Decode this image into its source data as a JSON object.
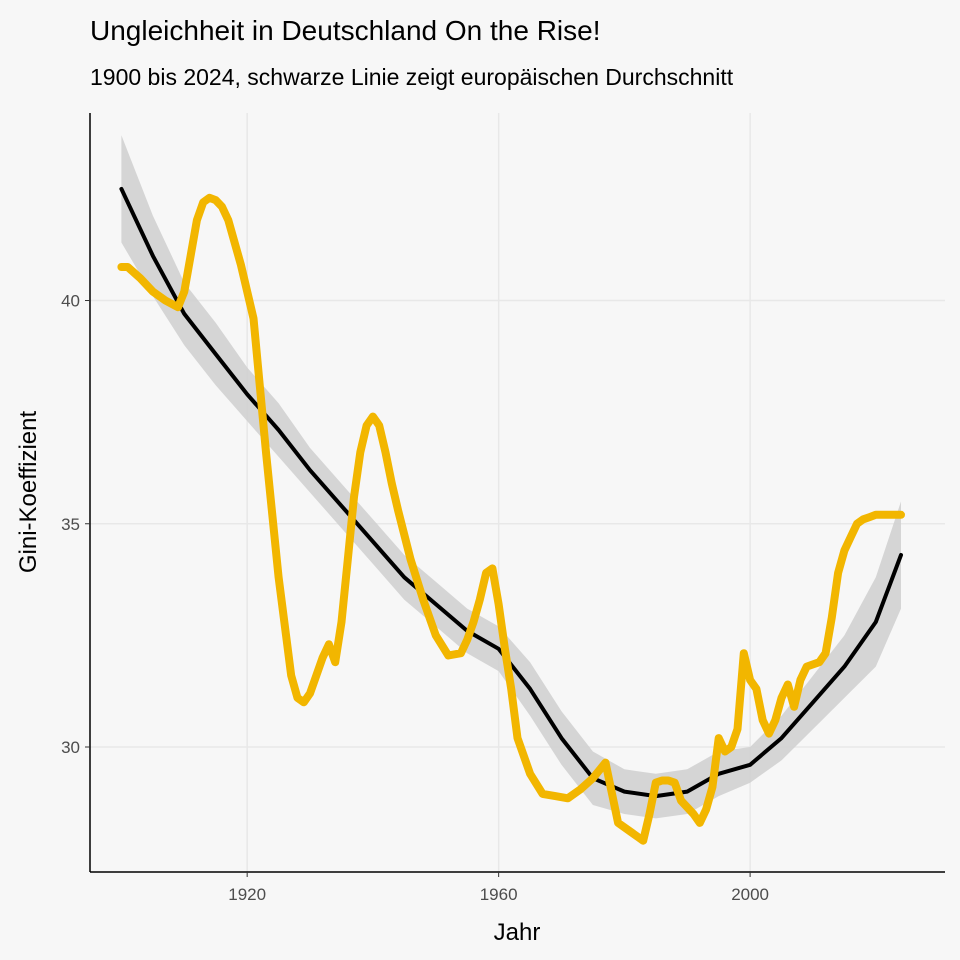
{
  "chart_data": {
    "type": "line",
    "title": "Ungleichheit in Deutschland On the Rise!",
    "subtitle": "1900 bis 2024, schwarze Linie zeigt europäischen Durchschnitt",
    "xlabel": "Jahr",
    "ylabel": "Gini-Koeffizient",
    "xlim": [
      1895,
      2031
    ],
    "ylim": [
      27.2,
      44.2
    ],
    "x_ticks": [
      1920,
      1960,
      2000
    ],
    "x_tick_labels": [
      "1920",
      "1960",
      "2000"
    ],
    "y_ticks": [
      30,
      35,
      40
    ],
    "y_tick_labels": [
      "30",
      "35",
      "40"
    ],
    "grid": true,
    "legend": "none",
    "colors": {
      "germany": "#f2b600",
      "europe": "#000000",
      "ribbon": "#cfcfcf",
      "background": "#f7f7f7",
      "grid": "#e8e8e8"
    },
    "series": [
      {
        "color": "#f2b600",
        "x": [
          1900,
          1901,
          1903,
          1905,
          1907,
          1909,
          1910,
          1911,
          1912,
          1913,
          1914,
          1915,
          1916,
          1917,
          1919,
          1921,
          1923,
          1925,
          1927,
          1928,
          1929,
          1930,
          1931,
          1932,
          1933,
          1934,
          1935,
          1936,
          1937,
          1938,
          1939,
          1940,
          1941,
          1942,
          1943,
          1944,
          1946,
          1948,
          1950,
          1952,
          1954,
          1955,
          1956,
          1957,
          1958,
          1959,
          1960,
          1961,
          1962,
          1963,
          1965,
          1967,
          1969,
          1971,
          1973,
          1975,
          1977,
          1979,
          1981,
          1983,
          1984,
          1985,
          1986,
          1987,
          1988,
          1989,
          1991,
          1992,
          1993,
          1994,
          1995,
          1996,
          1997,
          1998,
          1999,
          2000,
          2001,
          2002,
          2003,
          2004,
          2005,
          2006,
          2007,
          2008,
          2009,
          2010,
          2011,
          2012,
          2013,
          2014,
          2015,
          2016,
          2017,
          2018,
          2019,
          2020,
          2021,
          2022,
          2023,
          2024
        ],
        "y": [
          40.75,
          40.75,
          40.5,
          40.2,
          40.0,
          39.85,
          40.2,
          41.0,
          41.8,
          42.2,
          42.3,
          42.25,
          42.1,
          41.8,
          40.8,
          39.6,
          36.6,
          33.8,
          31.6,
          31.1,
          31.0,
          31.2,
          31.6,
          32.0,
          32.3,
          31.9,
          32.8,
          34.2,
          35.6,
          36.6,
          37.2,
          37.4,
          37.2,
          36.6,
          35.9,
          35.3,
          34.2,
          33.3,
          32.5,
          32.05,
          32.1,
          32.4,
          32.8,
          33.3,
          33.9,
          34.0,
          33.2,
          32.2,
          31.3,
          30.2,
          29.4,
          28.95,
          28.9,
          28.85,
          29.05,
          29.3,
          29.65,
          28.3,
          28.1,
          27.9,
          28.5,
          29.2,
          29.25,
          29.25,
          29.2,
          28.8,
          28.5,
          28.3,
          28.6,
          29.1,
          30.2,
          29.9,
          30.0,
          30.4,
          32.1,
          31.5,
          31.3,
          30.6,
          30.3,
          30.6,
          31.1,
          31.4,
          30.9,
          31.5,
          31.8,
          31.85,
          31.9,
          32.1,
          32.9,
          33.9,
          34.4,
          34.7,
          35.0,
          35.1,
          35.15,
          35.2,
          35.2,
          35.2,
          35.2,
          35.2
        ],
        "note_stop": 2024
      },
      {
        "color": "#000000",
        "x": [
          1900,
          1905,
          1910,
          1915,
          1920,
          1925,
          1930,
          1935,
          1940,
          1945,
          1950,
          1955,
          1960,
          1965,
          1970,
          1975,
          1980,
          1985,
          1990,
          1995,
          2000,
          2005,
          2010,
          2015,
          2020,
          2024
        ],
        "y": [
          42.5,
          41.0,
          39.7,
          38.8,
          37.9,
          37.1,
          36.2,
          35.4,
          34.6,
          33.8,
          33.2,
          32.6,
          32.2,
          31.3,
          30.2,
          29.3,
          29.0,
          28.9,
          29.0,
          29.4,
          29.6,
          30.2,
          31.0,
          31.8,
          32.8,
          34.3
        ],
        "ci_low": [
          41.3,
          40.1,
          39.0,
          38.1,
          37.3,
          36.5,
          35.7,
          34.9,
          34.1,
          33.3,
          32.7,
          32.1,
          31.7,
          30.7,
          29.6,
          28.7,
          28.5,
          28.4,
          28.5,
          28.9,
          29.2,
          29.7,
          30.4,
          31.1,
          31.8,
          33.1
        ],
        "ci_high": [
          43.7,
          41.9,
          40.4,
          39.5,
          38.5,
          37.7,
          36.7,
          35.9,
          35.1,
          34.3,
          33.7,
          33.1,
          32.7,
          31.9,
          30.8,
          29.9,
          29.5,
          29.4,
          29.5,
          29.9,
          30.0,
          30.7,
          31.6,
          32.5,
          33.8,
          35.5
        ]
      }
    ]
  }
}
